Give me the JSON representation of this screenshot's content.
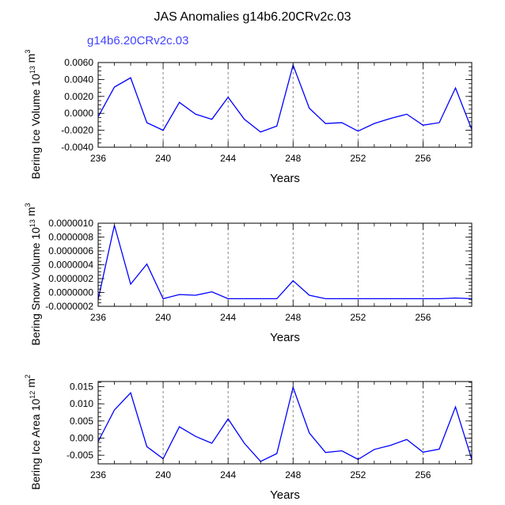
{
  "title": "JAS Anomalies g14b6.20CRv2c.03",
  "series_label": "g14b6.20CRv2c.03",
  "colors": {
    "line": "#0000ff",
    "series_label": "#4444ff",
    "axis": "#000000",
    "grid": "#666666"
  },
  "x_ticks": [
    236,
    240,
    244,
    248,
    252,
    256
  ],
  "chart_data": [
    {
      "type": "line",
      "xlabel": "Years",
      "ylabel_main": "Bering Ice Volume 10",
      "ylabel_exp": "13",
      "ylabel_unit": " m",
      "ylabel_unit_exp": "3",
      "xlim": [
        236,
        259
      ],
      "ylim": [
        -0.004,
        0.006
      ],
      "y_ticks": [
        0.006,
        0.004,
        0.002,
        0.0,
        -0.002,
        -0.004
      ],
      "y_tick_labels": [
        "0.0060",
        "0.0040",
        "0.0020",
        "0.0000",
        "-0.0020",
        "-0.0040"
      ],
      "y_minor_step": 0.0005,
      "x": [
        236,
        237,
        238,
        239,
        240,
        241,
        242,
        243,
        244,
        245,
        246,
        247,
        248,
        249,
        250,
        251,
        252,
        253,
        254,
        255,
        256,
        257,
        258,
        259
      ],
      "values": [
        -0.0004,
        0.0031,
        0.0042,
        -0.0011,
        -0.002,
        0.0013,
        -0.0001,
        -0.0007,
        0.0019,
        -0.0007,
        -0.0022,
        -0.0015,
        0.0057,
        0.0006,
        -0.0012,
        -0.0011,
        -0.0021,
        -0.0012,
        -0.0006,
        -0.0001,
        -0.0014,
        -0.0011,
        0.003,
        -0.0019
      ]
    },
    {
      "type": "line",
      "xlabel": "Years",
      "ylabel_main": "Bering Snow Volume 10",
      "ylabel_exp": "13",
      "ylabel_unit": " m",
      "ylabel_unit_exp": "3",
      "xlim": [
        236,
        259
      ],
      "ylim": [
        -2e-07,
        1e-06
      ],
      "y_ticks": [
        1e-06,
        8e-07,
        6e-07,
        4e-07,
        2e-07,
        0.0,
        -2e-07
      ],
      "y_tick_labels": [
        "0.0000010",
        "0.0000008",
        "0.0000006",
        "0.0000004",
        "0.0000002",
        "0.0000000",
        "-0.0000002"
      ],
      "y_minor_step": 5e-08,
      "x": [
        236,
        237,
        238,
        239,
        240,
        241,
        242,
        243,
        244,
        245,
        246,
        247,
        248,
        249,
        250,
        251,
        252,
        253,
        254,
        255,
        256,
        257,
        258,
        259
      ],
      "values": [
        -1e-07,
        9.7e-07,
        1.2e-07,
        4.1e-07,
        -9e-08,
        -3e-08,
        -4e-08,
        1e-08,
        -9e-08,
        -9e-08,
        -9e-08,
        -9e-08,
        1.7e-07,
        -4e-08,
        -9e-08,
        -9e-08,
        -9e-08,
        -9e-08,
        -9e-08,
        -9e-08,
        -9e-08,
        -9e-08,
        -8e-08,
        -9e-08
      ]
    },
    {
      "type": "line",
      "xlabel": "Years",
      "ylabel_main": "Bering Ice Area 10",
      "ylabel_exp": "12",
      "ylabel_unit": " m",
      "ylabel_unit_exp": "2",
      "xlim": [
        236,
        259
      ],
      "ylim": [
        -0.0075,
        0.0165
      ],
      "y_ticks": [
        0.015,
        0.01,
        0.005,
        0.0,
        -0.005
      ],
      "y_tick_labels": [
        "0.015",
        "0.010",
        "0.005",
        "0.000",
        "-0.005"
      ],
      "y_minor_step": 0.00125,
      "x": [
        236,
        237,
        238,
        239,
        240,
        241,
        242,
        243,
        244,
        245,
        246,
        247,
        248,
        249,
        250,
        251,
        252,
        253,
        254,
        255,
        256,
        257,
        258,
        259
      ],
      "values": [
        -0.001,
        0.0082,
        0.0132,
        -0.0025,
        -0.006,
        0.0033,
        0.0005,
        -0.0015,
        0.0056,
        -0.0015,
        -0.0068,
        -0.0045,
        0.0148,
        0.0015,
        -0.0042,
        -0.0037,
        -0.0062,
        -0.0033,
        -0.0021,
        -0.0004,
        -0.0041,
        -0.0032,
        0.0091,
        -0.0062
      ]
    }
  ]
}
